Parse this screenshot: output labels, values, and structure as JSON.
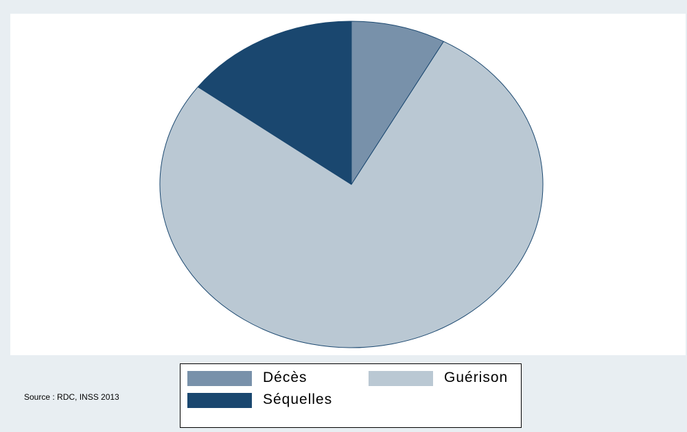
{
  "chart_data": {
    "type": "pie",
    "slices": [
      {
        "label": "Décès",
        "value": 8,
        "color": "#7891aa"
      },
      {
        "label": "Guérison",
        "value": 77.2,
        "color": "#bac8d3"
      },
      {
        "label": "Séquelles",
        "value": 14.8,
        "color": "#1a476f"
      }
    ],
    "start_angle_deg": 0,
    "direction": "clockwise",
    "slice_edge_color": "#1a476f",
    "legend_position": "bottom",
    "legend_columns": 2
  },
  "legend": {
    "items": [
      {
        "label": "Décès",
        "color": "#7891aa"
      },
      {
        "label": "Guérison",
        "color": "#bac8d3"
      },
      {
        "label": "Séquelles",
        "color": "#1a476f"
      }
    ]
  },
  "source_note": "Source : RDC, INSS 2013"
}
